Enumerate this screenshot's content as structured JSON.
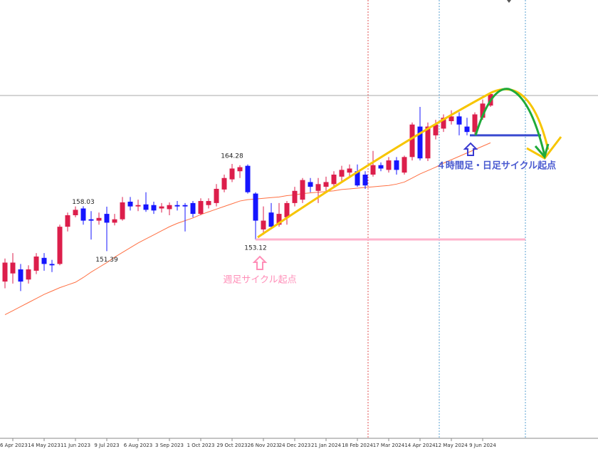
{
  "chart_data": {
    "type": "candlestick",
    "categories": [
      null,
      "6 Apr 2023",
      null,
      null,
      null,
      "14 May 2023",
      null,
      null,
      null,
      "11 Jun 2023",
      null,
      null,
      null,
      "9 Jul 2023",
      null,
      null,
      null,
      "6 Aug 2023",
      null,
      null,
      null,
      "3 Sep 2023",
      null,
      null,
      null,
      "1 Oct 2023",
      null,
      null,
      null,
      "29 Oct 2023",
      null,
      null,
      null,
      "26 Nov 2023",
      null,
      null,
      null,
      "24 Dec 2023",
      null,
      null,
      null,
      "21 Jan 2024",
      null,
      null,
      null,
      "18 Feb 2024",
      null,
      null,
      null,
      "17 Mar 2024",
      null,
      null,
      null,
      "14 Apr 2024",
      null,
      null,
      null,
      "12 May 2024",
      null,
      null,
      null,
      "9 Jun 2024",
      null
    ],
    "open": [
      146.9,
      148.1,
      148.7,
      147.2,
      148.5,
      150.4,
      149.5,
      149.5,
      155.0,
      156.7,
      157.7,
      156.1,
      155.9,
      156.9,
      155.6,
      156.1,
      158.7,
      158.0,
      158.3,
      158.2,
      157.7,
      157.6,
      158.2,
      158.2,
      158.5,
      156.9,
      158.2,
      158.5,
      160.5,
      162.0,
      163.2,
      164.0,
      159.9,
      154.6,
      157.1,
      155.3,
      156.4,
      158.5,
      159.0,
      161.6,
      160.3,
      160.9,
      161.3,
      162.4,
      163.0,
      163.2,
      162.7,
      162.7,
      164.1,
      163.4,
      164.8,
      163.0,
      165.3,
      169.8,
      165.1,
      168.5,
      169.5,
      170.6,
      171.3,
      169.8,
      169.0,
      171.1,
      172.9
    ],
    "high": [
      150.3,
      151.1,
      149.5,
      149.3,
      151.1,
      151.1,
      150.1,
      155.3,
      157.1,
      158.0,
      158.03,
      157.3,
      157.1,
      157.96,
      156.9,
      159.4,
      159.4,
      159.0,
      160.1,
      158.7,
      158.5,
      158.6,
      158.8,
      158.5,
      158.8,
      159.2,
      159.2,
      161.3,
      162.7,
      164.28,
      164.1,
      164.2,
      160.1,
      158.0,
      158.5,
      158.5,
      158.8,
      160.9,
      162.2,
      162.2,
      162.2,
      162.4,
      163.2,
      164.0,
      164.2,
      164.2,
      163.2,
      166.2,
      164.5,
      165.3,
      165.3,
      165.5,
      170.4,
      172.7,
      170.4,
      170.8,
      171.6,
      172.2,
      171.9,
      171.1,
      171.9,
      173.8,
      174.8
    ],
    "low": [
      145.9,
      146.6,
      145.5,
      146.6,
      148.0,
      148.5,
      148.3,
      149.3,
      154.3,
      156.4,
      155.3,
      153.1,
      155.3,
      151.39,
      155.2,
      155.9,
      157.4,
      157.3,
      157.2,
      156.9,
      157.1,
      156.7,
      157.4,
      154.3,
      156.4,
      156.7,
      157.7,
      158.0,
      160.1,
      161.6,
      162.2,
      159.9,
      153.12,
      153.8,
      154.6,
      155.0,
      155.3,
      158.0,
      158.5,
      160.1,
      158.5,
      160.1,
      160.9,
      161.6,
      162.4,
      160.9,
      160.6,
      162.4,
      163.2,
      163.0,
      162.7,
      162.7,
      164.8,
      164.8,
      164.7,
      167.9,
      169.0,
      170.1,
      168.5,
      168.5,
      168.5,
      170.8,
      172.7
    ],
    "close": [
      149.7,
      149.7,
      146.9,
      148.7,
      150.6,
      149.5,
      149.3,
      155.0,
      156.7,
      157.5,
      155.9,
      155.9,
      156.3,
      155.6,
      156.1,
      158.6,
      158.0,
      158.2,
      157.5,
      157.4,
      158.0,
      158.2,
      158.0,
      158.0,
      156.9,
      158.8,
      158.8,
      160.6,
      162.2,
      163.6,
      163.8,
      160.1,
      155.9,
      155.9,
      155.0,
      156.9,
      158.5,
      160.3,
      161.9,
      160.9,
      161.3,
      161.6,
      162.7,
      163.4,
      163.6,
      161.1,
      161.1,
      164.1,
      163.6,
      164.8,
      163.4,
      165.3,
      170.1,
      165.1,
      169.8,
      170.1,
      171.1,
      171.3,
      170.1,
      169.0,
      171.6,
      173.2,
      174.6
    ],
    "up_color": "#dc1e4b",
    "down_color": "#1515ff",
    "ma": {
      "color": "#ff7043",
      "values": [
        142.0,
        142.6,
        143.2,
        143.8,
        144.4,
        145.0,
        145.5,
        146.0,
        146.4,
        146.8,
        147.5,
        148.3,
        149.0,
        149.7,
        150.5,
        151.2,
        151.9,
        152.6,
        153.2,
        153.8,
        154.4,
        155.0,
        155.5,
        155.9,
        156.3,
        156.8,
        157.2,
        157.6,
        158.0,
        158.4,
        158.8,
        159.0,
        159.1,
        159.2,
        159.3,
        159.4,
        159.6,
        159.7,
        159.9,
        160.0,
        160.1,
        160.2,
        160.3,
        160.5,
        160.6,
        160.7,
        160.8,
        160.9,
        161.0,
        161.1,
        161.3,
        161.6,
        162.2,
        162.8,
        163.3,
        163.8,
        164.4,
        164.9,
        165.4,
        165.9,
        166.4,
        166.9,
        167.4
      ]
    },
    "ylim": [
      123.74,
      188.5
    ],
    "annotations": [
      "週足サイクル起点",
      "４時間足・日足サイクル起点"
    ]
  }
}
